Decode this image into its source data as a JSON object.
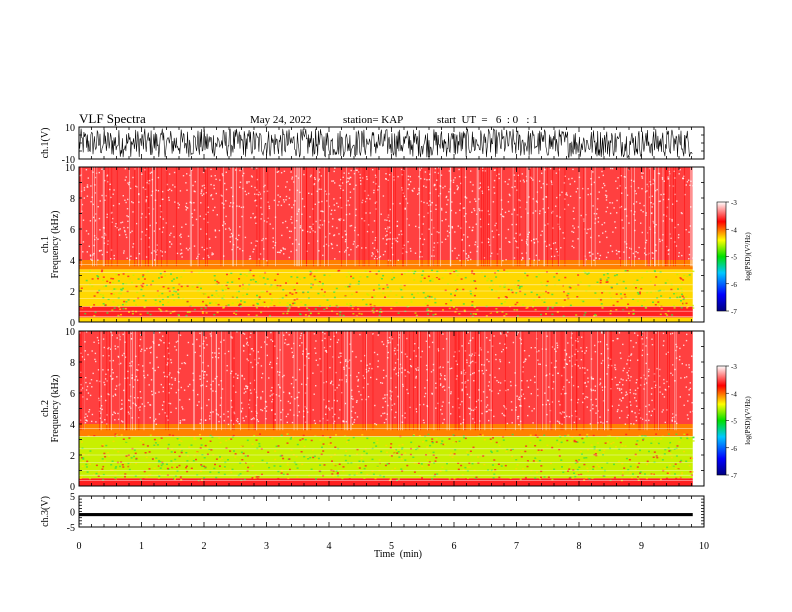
{
  "header": {
    "title": "VLF Spectra",
    "date": "May 24, 2022",
    "station": "station= KAP",
    "start": "start  UT  =   6  : 0   : 1"
  },
  "colors": {
    "background": "#ffffff",
    "spectrum_high": "#ff3b3b",
    "spectrum_mid": "#ffd800",
    "spectrum_low": "#38e038",
    "waveform": "#000000"
  },
  "chart_data": [
    {
      "type": "line",
      "name": "ch.1 waveform",
      "ylabel": "ch.1(V)",
      "ylim": [
        -10,
        10
      ],
      "y_ticks": [
        "10",
        "-10"
      ],
      "xlim": [
        0,
        10
      ],
      "description_values": {
        "amplitude_range_V": [
          -9,
          9
        ]
      }
    },
    {
      "type": "heatmap",
      "name": "ch.1 spectrogram",
      "ylabel": "ch.1\nFrequency  (kHz)",
      "ylabel_lines": [
        "ch.1",
        "Frequency  (kHz)"
      ],
      "ylim": [
        0,
        10
      ],
      "y_ticks": [
        "0",
        "2",
        "4",
        "6",
        "8",
        "10"
      ],
      "xlim": [
        0,
        10
      ],
      "bands": [
        {
          "f_low": 0.0,
          "f_high": 0.3,
          "level": -4.2
        },
        {
          "f_low": 0.3,
          "f_high": 1.0,
          "level": -3.4
        },
        {
          "f_low": 1.0,
          "f_high": 3.4,
          "level": -4.3
        },
        {
          "f_low": 3.4,
          "f_high": 4.0,
          "level": -3.8
        },
        {
          "f_low": 4.0,
          "f_high": 10.0,
          "level": -3.1
        }
      ],
      "colorbar": {
        "label": "log(PSD)(V²/Hz)",
        "ticks": [
          "-3",
          "-4",
          "-5",
          "-6",
          "-7"
        ],
        "range": [
          -7,
          -3
        ]
      }
    },
    {
      "type": "heatmap",
      "name": "ch.2 spectrogram",
      "ylabel": "ch.2\nFrequency  (kHz)",
      "ylabel_lines": [
        "ch.2",
        "Frequency  (kHz)"
      ],
      "ylim": [
        0,
        10
      ],
      "y_ticks": [
        "0",
        "2",
        "4",
        "6",
        "8",
        "10"
      ],
      "xlim": [
        0,
        10
      ],
      "bands": [
        {
          "f_low": 0.0,
          "f_high": 0.5,
          "level": -3.6
        },
        {
          "f_low": 0.5,
          "f_high": 3.2,
          "level": -4.6
        },
        {
          "f_low": 3.2,
          "f_high": 4.0,
          "level": -3.7
        },
        {
          "f_low": 4.0,
          "f_high": 10.0,
          "level": -3.1
        }
      ],
      "colorbar": {
        "label": "log(PSD)(V²/Hz)",
        "ticks": [
          "-3",
          "-4",
          "-5",
          "-6",
          "-7"
        ],
        "range": [
          -7,
          -3
        ]
      }
    },
    {
      "type": "line",
      "name": "ch.3 waveform",
      "ylabel": "ch.3(V)",
      "ylim": [
        -5,
        5
      ],
      "y_ticks": [
        "5",
        "0",
        "-5"
      ],
      "xlim": [
        0,
        10
      ],
      "description_values": {
        "amplitude_range_V": [
          -1.5,
          -0.5
        ]
      }
    }
  ],
  "x_axis": {
    "label": "Time  (min)",
    "ticks": [
      "0",
      "1",
      "2",
      "3",
      "4",
      "5",
      "6",
      "7",
      "8",
      "9",
      "10"
    ],
    "range": [
      0,
      10
    ],
    "data_end": 9.82
  }
}
